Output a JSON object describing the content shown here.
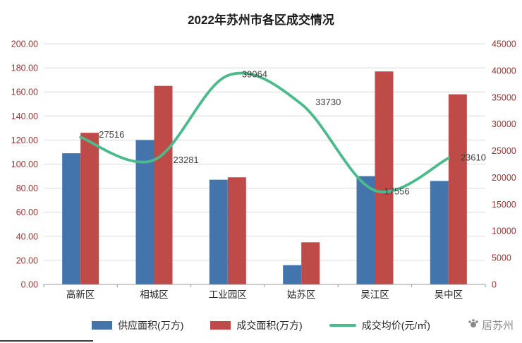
{
  "chart_data": {
    "type": "bar",
    "title": "2022年苏州市各区成交情况",
    "categories": [
      "高新区",
      "相城区",
      "工业园区",
      "姑苏区",
      "吴江区",
      "吴中区"
    ],
    "series": [
      {
        "name": "供应面积(万方)",
        "type": "bar",
        "axis": "left",
        "color": "#4374AC",
        "values": [
          109,
          120,
          87,
          16,
          90,
          86
        ]
      },
      {
        "name": "成交面积(万方)",
        "type": "bar",
        "axis": "left",
        "color": "#BE4B48",
        "values": [
          126,
          165,
          89,
          35,
          177,
          158
        ]
      },
      {
        "name": "成交均价(元/㎡)",
        "type": "line",
        "axis": "right",
        "color": "#4CBB8C",
        "values": [
          27516,
          23281,
          39064,
          33730,
          17556,
          23610
        ],
        "labels": [
          "27516",
          "23281",
          "39064",
          "33730",
          "17556",
          "23610"
        ]
      }
    ],
    "left_axis": {
      "min": 0,
      "max": 200,
      "step": 20,
      "tick_labels": [
        "0.00",
        "20.00",
        "40.00",
        "60.00",
        "80.00",
        "100.00",
        "120.00",
        "140.00",
        "160.00",
        "180.00",
        "200.00"
      ]
    },
    "right_axis": {
      "min": 0,
      "max": 45000,
      "step": 5000,
      "tick_labels": [
        "0",
        "5000",
        "10000",
        "15000",
        "20000",
        "25000",
        "30000",
        "35000",
        "40000",
        "45000"
      ]
    },
    "grid": true,
    "legend_position": "bottom",
    "axis_label_color": "#953734",
    "category_label_color": "#262626",
    "data_label_color": "#404040"
  },
  "logo": {
    "text": "居苏州"
  }
}
